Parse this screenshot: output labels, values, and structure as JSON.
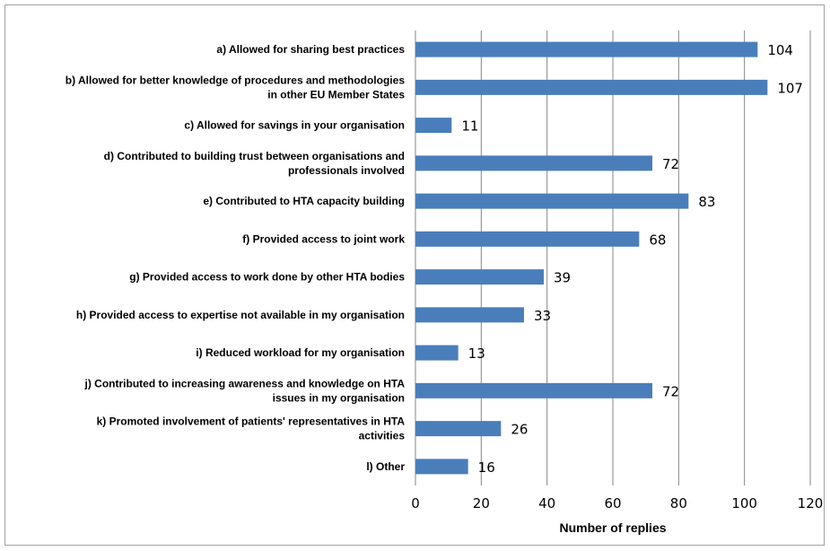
{
  "chart_data": {
    "type": "bar",
    "orientation": "horizontal",
    "title": "",
    "xlabel": "Number of replies",
    "ylabel": "",
    "xlim": [
      0,
      120
    ],
    "xticks": [
      0,
      20,
      40,
      60,
      80,
      100,
      120
    ],
    "grid": "vertical",
    "legend": "none",
    "bar_color": "#4a7ebb",
    "gridline_color": "#868686",
    "categories": [
      [
        "a) Allowed for sharing best practices"
      ],
      [
        "b) Allowed for better knowledge of procedures and methodologies",
        "in other EU Member States"
      ],
      [
        "c) Allowed for savings in your organisation"
      ],
      [
        "d) Contributed to building trust between organisations and",
        "professionals involved"
      ],
      [
        "e) Contributed to HTA capacity building"
      ],
      [
        "f) Provided access to joint work"
      ],
      [
        "g) Provided access to work done by other HTA bodies"
      ],
      [
        "h) Provided access to expertise not available in my organisation"
      ],
      [
        "i) Reduced workload for my organisation"
      ],
      [
        "j) Contributed to increasing awareness and knowledge on HTA",
        "issues in my organisation"
      ],
      [
        "k) Promoted involvement of patients' representatives in HTA",
        "activities"
      ],
      [
        "l) Other"
      ]
    ],
    "values": [
      104,
      107,
      11,
      72,
      83,
      68,
      39,
      33,
      13,
      72,
      26,
      16
    ]
  }
}
